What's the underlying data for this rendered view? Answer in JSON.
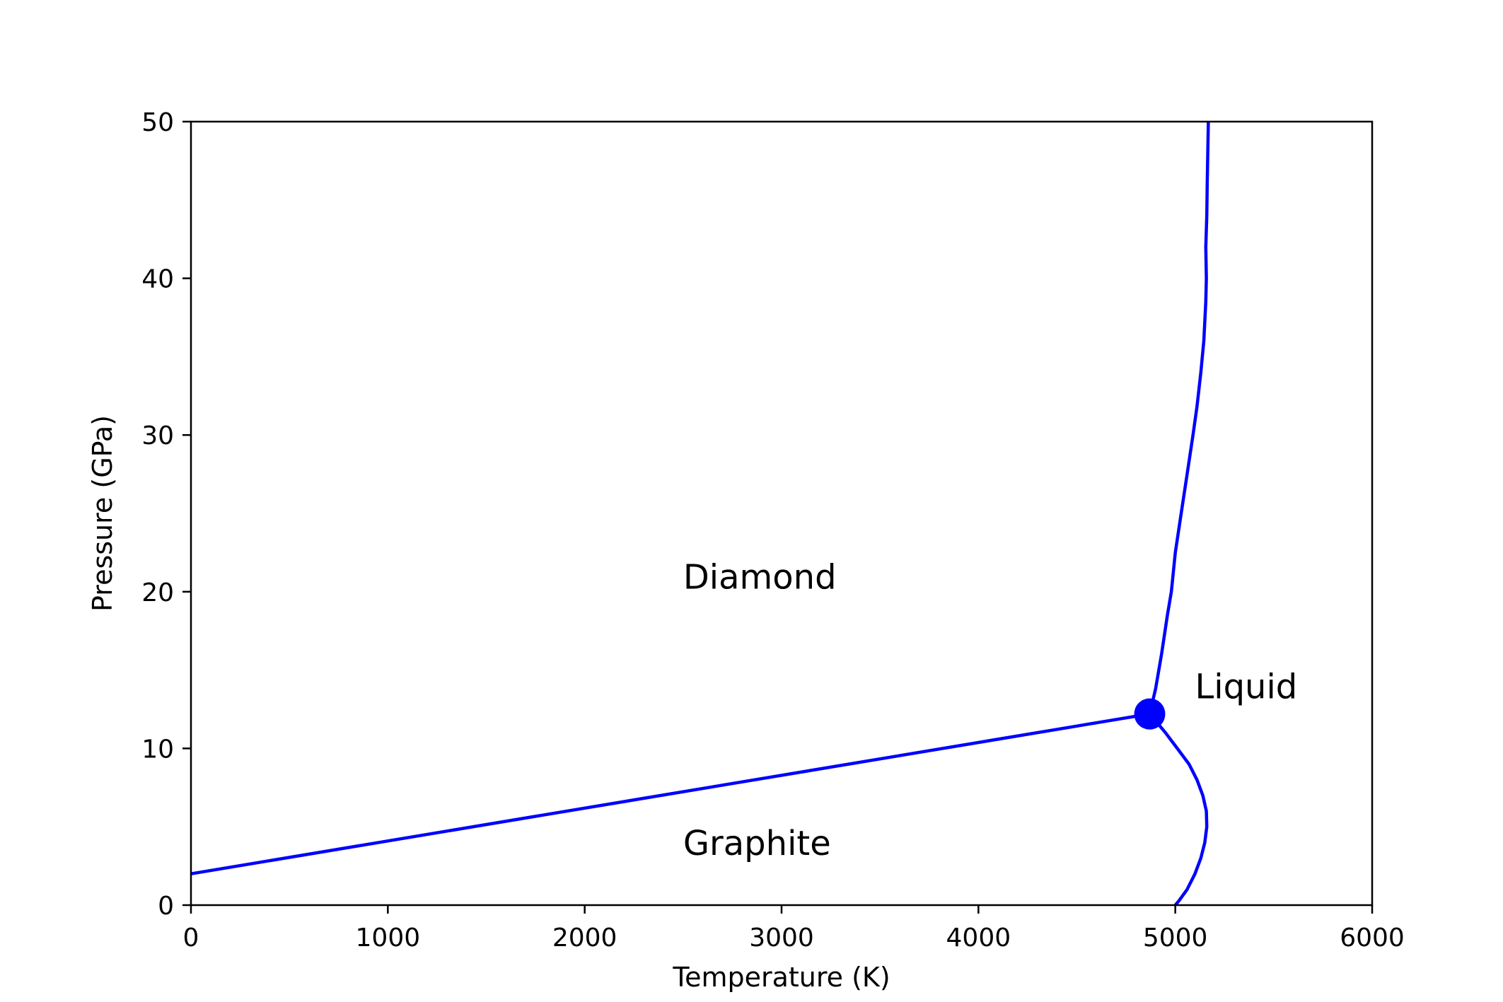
{
  "chart_data": {
    "type": "line",
    "title": "",
    "xlabel": "Temperature (K)",
    "ylabel": "Pressure (GPa)",
    "xlim": [
      0,
      6000
    ],
    "ylim": [
      0,
      50
    ],
    "x_ticks": [
      0,
      1000,
      2000,
      3000,
      4000,
      5000,
      6000
    ],
    "y_ticks": [
      0,
      10,
      20,
      30,
      40,
      50
    ],
    "x_tick_labels": [
      "0",
      "1000",
      "2000",
      "3000",
      "4000",
      "5000",
      "6000"
    ],
    "y_tick_labels": [
      "0",
      "10",
      "20",
      "30",
      "40",
      "50"
    ],
    "grid": false,
    "line_color": "#0000ff",
    "series": [
      {
        "id": "graphite-diamond",
        "points": [
          [
            0,
            2.0
          ],
          [
            4870,
            12.2
          ]
        ]
      },
      {
        "id": "diamond-liquid",
        "points": [
          [
            4870,
            12.2
          ],
          [
            4900,
            13.8
          ],
          [
            4930,
            16.0
          ],
          [
            4960,
            18.5
          ],
          [
            4980,
            20.0
          ],
          [
            5000,
            22.5
          ],
          [
            5030,
            25.0
          ],
          [
            5060,
            27.5
          ],
          [
            5090,
            30.0
          ],
          [
            5110,
            31.8
          ],
          [
            5130,
            34.0
          ],
          [
            5145,
            36.0
          ],
          [
            5155,
            38.5
          ],
          [
            5158,
            40.0
          ],
          [
            5155,
            42.0
          ],
          [
            5160,
            44.0
          ],
          [
            5162,
            46.0
          ],
          [
            5165,
            48.0
          ],
          [
            5168,
            50.0
          ]
        ]
      },
      {
        "id": "graphite-liquid",
        "points": [
          [
            4870,
            12.2
          ],
          [
            4950,
            11.0
          ],
          [
            5010,
            10.0
          ],
          [
            5070,
            9.0
          ],
          [
            5110,
            8.0
          ],
          [
            5140,
            7.0
          ],
          [
            5158,
            6.0
          ],
          [
            5160,
            5.0
          ],
          [
            5150,
            4.0
          ],
          [
            5130,
            3.0
          ],
          [
            5100,
            2.0
          ],
          [
            5060,
            1.0
          ],
          [
            5020,
            0.3
          ],
          [
            5000,
            0.0
          ]
        ]
      }
    ],
    "points": [
      {
        "id": "triple-point",
        "x": 4870,
        "y": 12.2
      }
    ],
    "annotations": [
      {
        "id": "diamond",
        "text": "Diamond",
        "x": 2500,
        "y": 20.2
      },
      {
        "id": "graphite",
        "text": "Graphite",
        "x": 2500,
        "y": 3.2
      },
      {
        "id": "liquid",
        "text": "Liquid",
        "x": 5100,
        "y": 13.2
      }
    ]
  }
}
